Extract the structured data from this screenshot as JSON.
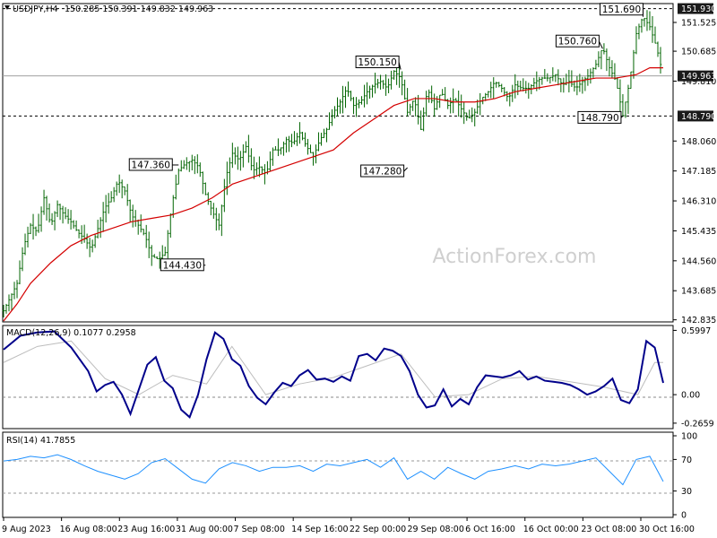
{
  "header": {
    "symbol": "USDJPY,H4",
    "ohlc": "150.285 150.391 149.832 149.963"
  },
  "watermark": "ActionForex.com",
  "chart_data": [
    {
      "type": "line",
      "title": "USDJPY,H4 150.285 150.391 149.832 149.963",
      "series": [],
      "description_of_series": "candlestick price with moving average",
      "ylim": [
        142.8,
        152.05
      ],
      "y_ticks": [
        "151.525",
        "150.685",
        "149.810",
        "148.060",
        "147.185",
        "146.310",
        "145.435",
        "144.560",
        "143.685",
        "142.835"
      ],
      "x_labels": [
        "9 Aug 2023",
        "16 Aug 08:00",
        "23 Aug 16:00",
        "31 Aug 00:00",
        "7 Sep 08:00",
        "14 Sep 16:00",
        "22 Sep 00:00",
        "29 Sep 08:00",
        "6 Oct 16:00",
        "16 Oct 00:00",
        "23 Oct 08:00",
        "30 Oct 16:00"
      ],
      "price_marks": [
        {
          "value": "151.930",
          "style": "dark"
        },
        {
          "value": "149.963",
          "style": "dark"
        },
        {
          "value": "148.790",
          "style": "dark"
        }
      ],
      "horizontal_lines": [
        {
          "value": 151.93,
          "style": "dashed"
        },
        {
          "value": 149.963,
          "style": "solid-gray"
        },
        {
          "value": 148.79,
          "style": "dashed"
        }
      ],
      "callouts": [
        {
          "label": "147.360",
          "value": 147.36
        },
        {
          "label": "144.430",
          "value": 144.43
        },
        {
          "label": "150.150",
          "value": 150.15
        },
        {
          "label": "147.280",
          "value": 147.28
        },
        {
          "label": "150.760",
          "value": 150.76
        },
        {
          "label": "151.690",
          "value": 151.69
        },
        {
          "label": "148.790",
          "value": 148.79
        }
      ],
      "price_path": [
        [
          0,
          143.1
        ],
        [
          2,
          143.9
        ],
        [
          3,
          145.0
        ],
        [
          4,
          145.6
        ],
        [
          5,
          145.4
        ],
        [
          6,
          146.4
        ],
        [
          7,
          145.6
        ],
        [
          8,
          146.2
        ],
        [
          9,
          145.9
        ],
        [
          10,
          145.7
        ],
        [
          11,
          145.4
        ],
        [
          12,
          145.2
        ],
        [
          13,
          144.9
        ],
        [
          14,
          145.5
        ],
        [
          15,
          146.1
        ],
        [
          16,
          146.4
        ],
        [
          17,
          146.9
        ],
        [
          18,
          146.6
        ],
        [
          19,
          145.9
        ],
        [
          20,
          145.6
        ],
        [
          21,
          145.3
        ],
        [
          22,
          144.7
        ],
        [
          23,
          144.6
        ],
        [
          24,
          144.8
        ],
        [
          25,
          146.2
        ],
        [
          26,
          147.2
        ],
        [
          27,
          147.4
        ],
        [
          28,
          147.5
        ],
        [
          29,
          147.3
        ],
        [
          30,
          146.5
        ],
        [
          31,
          146.0
        ],
        [
          32,
          145.6
        ],
        [
          33,
          147.0
        ],
        [
          34,
          147.7
        ],
        [
          35,
          147.5
        ],
        [
          36,
          147.9
        ],
        [
          37,
          147.2
        ],
        [
          38,
          147.3
        ],
        [
          39,
          147.1
        ],
        [
          40,
          147.8
        ],
        [
          41,
          147.8
        ],
        [
          42,
          148.1
        ],
        [
          43,
          148.0
        ],
        [
          44,
          148.3
        ],
        [
          45,
          147.9
        ],
        [
          46,
          147.6
        ],
        [
          47,
          148.1
        ],
        [
          48,
          148.4
        ],
        [
          49,
          148.9
        ],
        [
          50,
          149.2
        ],
        [
          51,
          149.6
        ],
        [
          52,
          149.1
        ],
        [
          53,
          149.2
        ],
        [
          54,
          149.5
        ],
        [
          55,
          149.7
        ],
        [
          56,
          149.8
        ],
        [
          57,
          149.6
        ],
        [
          58,
          150.1
        ],
        [
          59,
          149.9
        ],
        [
          60,
          148.9
        ],
        [
          61,
          149.3
        ],
        [
          62,
          148.4
        ],
        [
          63,
          149.6
        ],
        [
          64,
          149.0
        ],
        [
          65,
          149.5
        ],
        [
          66,
          149.1
        ],
        [
          67,
          149.3
        ],
        [
          68,
          149.0
        ],
        [
          69,
          148.7
        ],
        [
          70,
          148.9
        ],
        [
          71,
          149.3
        ],
        [
          72,
          149.5
        ],
        [
          73,
          149.8
        ],
        [
          74,
          149.6
        ],
        [
          75,
          149.3
        ],
        [
          76,
          149.7
        ],
        [
          77,
          149.6
        ],
        [
          78,
          149.6
        ],
        [
          79,
          149.8
        ],
        [
          80,
          149.9
        ],
        [
          81,
          149.9
        ],
        [
          82,
          150.0
        ],
        [
          83,
          149.7
        ],
        [
          84,
          149.8
        ],
        [
          85,
          149.6
        ],
        [
          86,
          149.8
        ],
        [
          87,
          150.0
        ],
        [
          88,
          150.3
        ],
        [
          89,
          150.8
        ],
        [
          90,
          150.2
        ],
        [
          91,
          149.8
        ],
        [
          92,
          148.8
        ],
        [
          93,
          149.8
        ],
        [
          94,
          151.2
        ],
        [
          95,
          151.7
        ],
        [
          96,
          151.4
        ],
        [
          97,
          150.8
        ],
        [
          98,
          149.96
        ]
      ],
      "ma_path": [
        [
          0,
          142.8
        ],
        [
          2,
          143.3
        ],
        [
          4,
          143.9
        ],
        [
          7,
          144.5
        ],
        [
          10,
          145.0
        ],
        [
          13,
          145.3
        ],
        [
          16,
          145.5
        ],
        [
          19,
          145.7
        ],
        [
          22,
          145.8
        ],
        [
          25,
          145.9
        ],
        [
          28,
          146.1
        ],
        [
          31,
          146.4
        ],
        [
          34,
          146.8
        ],
        [
          37,
          147.0
        ],
        [
          40,
          147.2
        ],
        [
          43,
          147.4
        ],
        [
          46,
          147.6
        ],
        [
          49,
          147.8
        ],
        [
          52,
          148.3
        ],
        [
          55,
          148.7
        ],
        [
          58,
          149.1
        ],
        [
          61,
          149.3
        ],
        [
          64,
          149.3
        ],
        [
          67,
          149.2
        ],
        [
          70,
          149.2
        ],
        [
          73,
          149.3
        ],
        [
          76,
          149.5
        ],
        [
          79,
          149.6
        ],
        [
          82,
          149.7
        ],
        [
          85,
          149.8
        ],
        [
          88,
          149.9
        ],
        [
          91,
          149.9
        ],
        [
          94,
          150.0
        ],
        [
          96,
          150.2
        ],
        [
          98,
          150.2
        ]
      ]
    },
    {
      "type": "line",
      "title": "MACD(12,26,9) 0.1077 0.2958",
      "ylim": [
        -0.3,
        0.62
      ],
      "y_ticks": [
        "0.5997",
        "0.00",
        "-0.2659"
      ],
      "series": [],
      "macd_path": [
        [
          0,
          0.42
        ],
        [
          2,
          0.55
        ],
        [
          4,
          0.58
        ],
        [
          6,
          0.59
        ],
        [
          8,
          0.44
        ],
        [
          10,
          0.22
        ],
        [
          11,
          0.03
        ],
        [
          12,
          0.09
        ],
        [
          13,
          0.12
        ],
        [
          14,
          0.0
        ],
        [
          15,
          -0.18
        ],
        [
          16,
          0.05
        ],
        [
          17,
          0.28
        ],
        [
          18,
          0.35
        ],
        [
          19,
          0.13
        ],
        [
          20,
          0.06
        ],
        [
          21,
          -0.14
        ],
        [
          22,
          -0.21
        ],
        [
          23,
          0.0
        ],
        [
          24,
          0.33
        ],
        [
          25,
          0.58
        ],
        [
          26,
          0.52
        ],
        [
          27,
          0.33
        ],
        [
          28,
          0.27
        ],
        [
          29,
          0.08
        ],
        [
          30,
          -0.03
        ],
        [
          31,
          -0.09
        ],
        [
          32,
          0.02
        ],
        [
          33,
          0.11
        ],
        [
          34,
          0.08
        ],
        [
          35,
          0.18
        ],
        [
          36,
          0.23
        ],
        [
          37,
          0.14
        ],
        [
          38,
          0.15
        ],
        [
          39,
          0.12
        ],
        [
          40,
          0.17
        ],
        [
          41,
          0.13
        ],
        [
          42,
          0.36
        ],
        [
          43,
          0.38
        ],
        [
          44,
          0.32
        ],
        [
          45,
          0.43
        ],
        [
          46,
          0.41
        ],
        [
          47,
          0.36
        ],
        [
          48,
          0.22
        ],
        [
          49,
          0.0
        ],
        [
          50,
          -0.12
        ],
        [
          51,
          -0.1
        ],
        [
          52,
          0.05
        ],
        [
          53,
          -0.11
        ],
        [
          54,
          -0.04
        ],
        [
          55,
          -0.09
        ],
        [
          56,
          0.07
        ],
        [
          57,
          0.18
        ],
        [
          58,
          0.17
        ],
        [
          59,
          0.16
        ],
        [
          60,
          0.18
        ],
        [
          61,
          0.22
        ],
        [
          62,
          0.14
        ],
        [
          63,
          0.17
        ],
        [
          64,
          0.13
        ],
        [
          65,
          0.12
        ],
        [
          66,
          0.11
        ],
        [
          67,
          0.09
        ],
        [
          68,
          0.05
        ],
        [
          69,
          0.0
        ],
        [
          70,
          0.03
        ],
        [
          71,
          0.08
        ],
        [
          72,
          0.15
        ],
        [
          73,
          -0.05
        ],
        [
          74,
          -0.08
        ],
        [
          75,
          0.05
        ],
        [
          76,
          0.5
        ],
        [
          77,
          0.44
        ],
        [
          78,
          0.11
        ]
      ],
      "signal_path": [
        [
          0,
          0.3
        ],
        [
          4,
          0.45
        ],
        [
          8,
          0.5
        ],
        [
          12,
          0.15
        ],
        [
          16,
          0.0
        ],
        [
          20,
          0.18
        ],
        [
          24,
          0.1
        ],
        [
          27,
          0.45
        ],
        [
          31,
          0.0
        ],
        [
          35,
          0.1
        ],
        [
          39,
          0.16
        ],
        [
          43,
          0.27
        ],
        [
          47,
          0.38
        ],
        [
          51,
          -0.02
        ],
        [
          55,
          0.0
        ],
        [
          59,
          0.15
        ],
        [
          63,
          0.17
        ],
        [
          67,
          0.12
        ],
        [
          71,
          0.07
        ],
        [
          75,
          0.0
        ],
        [
          77,
          0.3
        ],
        [
          78,
          0.3
        ]
      ]
    },
    {
      "type": "line",
      "title": "RSI(14) 41.7855",
      "ylim": [
        0,
        100
      ],
      "y_ticks": [
        "100",
        "70",
        "30",
        "0"
      ],
      "levels": [
        70,
        30
      ],
      "rsi_path": [
        [
          0,
          68
        ],
        [
          2,
          70
        ],
        [
          4,
          74
        ],
        [
          6,
          72
        ],
        [
          8,
          76
        ],
        [
          10,
          70
        ],
        [
          12,
          62
        ],
        [
          14,
          55
        ],
        [
          16,
          50
        ],
        [
          18,
          45
        ],
        [
          20,
          52
        ],
        [
          22,
          66
        ],
        [
          24,
          71
        ],
        [
          26,
          58
        ],
        [
          28,
          45
        ],
        [
          30,
          40
        ],
        [
          32,
          58
        ],
        [
          34,
          66
        ],
        [
          36,
          62
        ],
        [
          38,
          55
        ],
        [
          40,
          60
        ],
        [
          42,
          60
        ],
        [
          44,
          62
        ],
        [
          46,
          55
        ],
        [
          48,
          64
        ],
        [
          50,
          62
        ],
        [
          52,
          66
        ],
        [
          54,
          70
        ],
        [
          56,
          60
        ],
        [
          58,
          72
        ],
        [
          60,
          45
        ],
        [
          62,
          55
        ],
        [
          64,
          45
        ],
        [
          66,
          60
        ],
        [
          68,
          52
        ],
        [
          70,
          45
        ],
        [
          72,
          55
        ],
        [
          74,
          58
        ],
        [
          76,
          62
        ],
        [
          78,
          58
        ],
        [
          80,
          64
        ],
        [
          82,
          62
        ],
        [
          84,
          64
        ],
        [
          86,
          68
        ],
        [
          88,
          72
        ],
        [
          90,
          55
        ],
        [
          92,
          38
        ],
        [
          94,
          70
        ],
        [
          96,
          74
        ],
        [
          98,
          42
        ]
      ]
    }
  ]
}
